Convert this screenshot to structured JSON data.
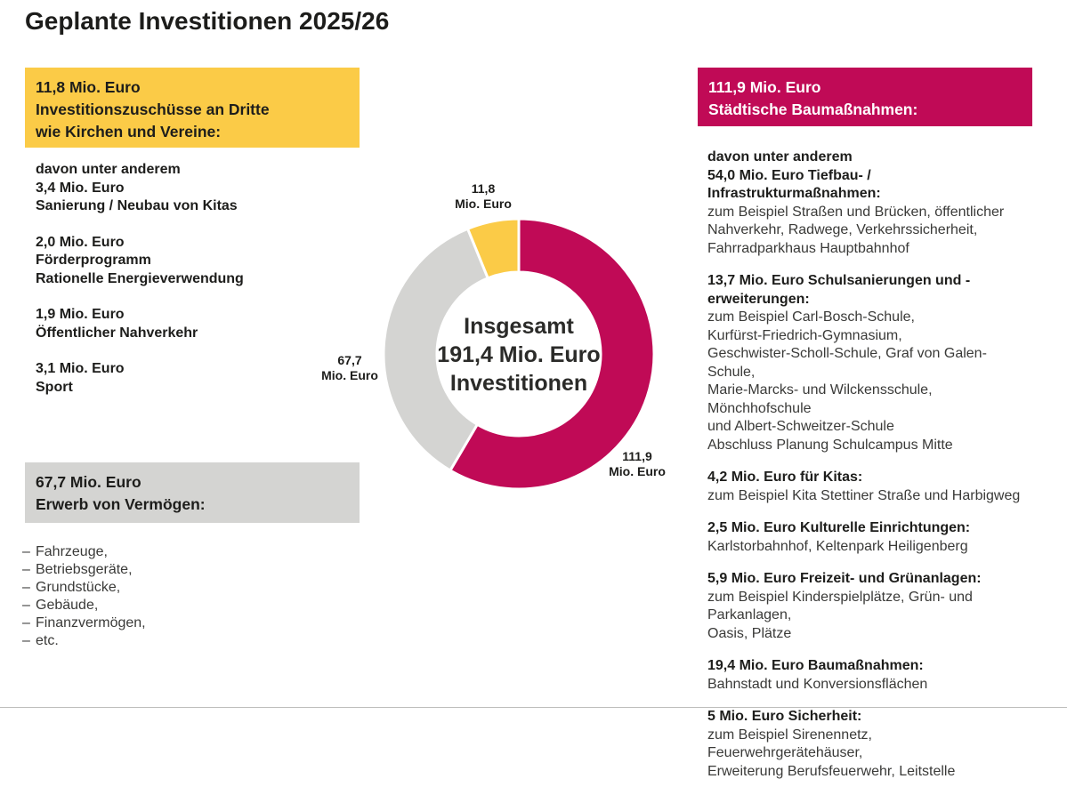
{
  "page": {
    "title": "Geplante Investitionen 2025/26"
  },
  "colors": {
    "yellow": "#FBCB47",
    "gray": "#D4D4D2",
    "magenta": "#C00A56",
    "divider": "#BDBDBB"
  },
  "left": {
    "bullet": "–",
    "yellow_box": {
      "lines": [
        "11,8 Mio. Euro",
        "Investitionszuschüsse an Dritte",
        "wie Kirchen und Vereine:"
      ]
    },
    "groups": [
      [
        "davon unter anderem",
        "3,4 Mio. Euro",
        "Sanierung / Neubau von Kitas"
      ],
      [
        "2,0 Mio. Euro",
        "Förderprogramm",
        "Rationelle Energieverwendung"
      ],
      [
        "1,9 Mio. Euro",
        "Öffentlicher Nahverkehr"
      ],
      [
        "3,1 Mio. Euro",
        "Sport"
      ]
    ],
    "gray_box": {
      "lines": [
        "67,7 Mio. Euro",
        "Erwerb von Vermögen:"
      ]
    },
    "asset_list": [
      "Fahrzeuge,",
      "Betriebsgeräte,",
      "Grundstücke,",
      "Gebäude,",
      "Finanzvermögen,",
      "etc."
    ]
  },
  "right": {
    "box": {
      "lines": [
        "111,9 Mio. Euro",
        "Städtische Baumaßnahmen:"
      ]
    },
    "intro": "davon unter anderem",
    "sections": [
      {
        "heading": "54,0 Mio. Euro Tiefbau- / Infrastrukturmaßnahmen:",
        "body": [
          "zum Beispiel Straßen und Brücken, öffentlicher",
          "Nahverkehr, Radwege, Verkehrssicherheit,",
          "Fahrradparkhaus Hauptbahnhof"
        ]
      },
      {
        "heading": "13,7 Mio. Euro Schulsanierungen und -erweiterungen:",
        "body": [
          "zum Beispiel Carl-Bosch-Schule,",
          "Kurfürst-Friedrich-Gymnasium,",
          "Geschwister-Scholl-Schule, Graf von Galen-Schule,",
          "Marie-Marcks- und Wilckensschule, Mönchhofschule",
          "und Albert-Schweitzer-Schule",
          "Abschluss Planung Schulcampus Mitte"
        ]
      },
      {
        "heading": "4,2 Mio. Euro für Kitas:",
        "body": [
          "zum Beispiel Kita Stettiner Straße und Harbigweg"
        ]
      },
      {
        "heading": "2,5 Mio. Euro Kulturelle Einrichtungen:",
        "body": [
          "Karlstorbahnhof, Keltenpark Heiligenberg"
        ]
      },
      {
        "heading": "5,9 Mio. Euro Freizeit- und Grünanlagen:",
        "body": [
          "zum Beispiel Kinderspielplätze, Grün- und Parkanlagen,",
          "Oasis, Plätze"
        ]
      },
      {
        "heading": "19,4 Mio. Euro Baumaßnahmen:",
        "body": [
          "Bahnstadt und Konversionsflächen"
        ]
      },
      {
        "heading": "5 Mio. Euro Sicherheit:",
        "body": [
          "zum Beispiel Sirenennetz, Feuerwehrgerätehäuser,",
          "Erweiterung Berufsfeuerwehr, Leitstelle"
        ]
      }
    ]
  },
  "chart_data": {
    "type": "pie",
    "donut": true,
    "title": "Geplante Investitionen 2025/26",
    "total": 191.4,
    "unit": "Mio. Euro",
    "start_angle_deg": 0,
    "direction": "clockwise",
    "center_label": {
      "line1": "Insgesamt",
      "line2": "191,4 Mio. Euro",
      "line3": "Investitionen"
    },
    "segments": [
      {
        "id": "staedtische-baumassnahmen",
        "name": "Städtische Baumaßnahmen",
        "value": 111.9,
        "value_label": "111,9",
        "unit": "Mio. Euro",
        "color": "#C00A56"
      },
      {
        "id": "erwerb-von-vermoegen",
        "name": "Erwerb von Vermögen",
        "value": 67.7,
        "value_label": "67,7",
        "unit": "Mio. Euro",
        "color": "#D4D4D2"
      },
      {
        "id": "investitionszuschuesse-an-dritte",
        "name": "Investitionszuschüsse an Dritte",
        "value": 11.8,
        "value_label": "11,8",
        "unit": "Mio. Euro",
        "color": "#FBCB47"
      }
    ]
  }
}
